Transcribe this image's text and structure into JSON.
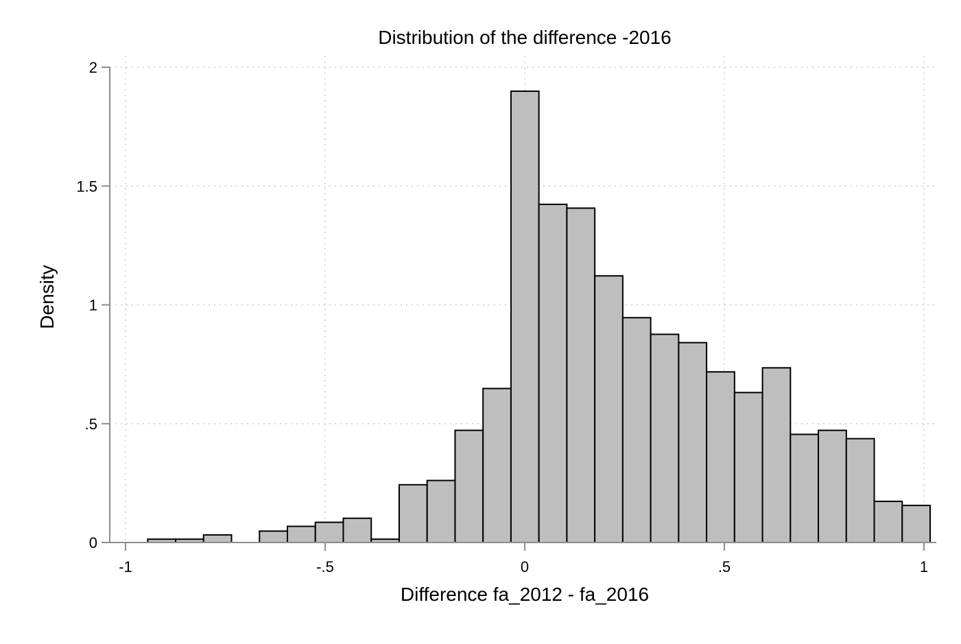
{
  "chart_data": {
    "type": "bar",
    "title": "Distribution of the difference -2016",
    "xlabel": "Difference fa_2012 - fa_2016",
    "ylabel": "Density",
    "xlim": [
      -1,
      1
    ],
    "ylim": [
      0,
      2
    ],
    "xticks": [
      {
        "value": -1,
        "label": "-1"
      },
      {
        "value": -0.5,
        "label": "-.5"
      },
      {
        "value": 0,
        "label": "0"
      },
      {
        "value": 0.5,
        "label": ".5"
      },
      {
        "value": 1,
        "label": "1"
      }
    ],
    "yticks": [
      {
        "value": 0,
        "label": "0"
      },
      {
        "value": 0.5,
        "label": ".5"
      },
      {
        "value": 1,
        "label": "1"
      },
      {
        "value": 1.5,
        "label": "1.5"
      },
      {
        "value": 2,
        "label": "2"
      }
    ],
    "grid": true,
    "legend": "none",
    "bar_color": "#bebebe",
    "bar_edge_color": "#000000",
    "bins": [
      {
        "start": -0.9445,
        "end": -0.8745,
        "density": 0.014
      },
      {
        "start": -0.8745,
        "end": -0.8045,
        "density": 0.014
      },
      {
        "start": -0.8045,
        "end": -0.7345,
        "density": 0.032
      },
      {
        "start": -0.6645,
        "end": -0.5945,
        "density": 0.048
      },
      {
        "start": -0.5945,
        "end": -0.5245,
        "density": 0.068
      },
      {
        "start": -0.5245,
        "end": -0.4545,
        "density": 0.085
      },
      {
        "start": -0.4545,
        "end": -0.3845,
        "density": 0.102
      },
      {
        "start": -0.3845,
        "end": -0.3145,
        "density": 0.014
      },
      {
        "start": -0.3145,
        "end": -0.2445,
        "density": 0.243
      },
      {
        "start": -0.2445,
        "end": -0.1745,
        "density": 0.261
      },
      {
        "start": -0.1745,
        "end": -0.1045,
        "density": 0.472
      },
      {
        "start": -0.1045,
        "end": -0.0345,
        "density": 0.648
      },
      {
        "start": -0.0345,
        "end": 0.0355,
        "density": 1.899
      },
      {
        "start": 0.0355,
        "end": 0.1055,
        "density": 1.423
      },
      {
        "start": 0.1055,
        "end": 0.1755,
        "density": 1.407
      },
      {
        "start": 0.1755,
        "end": 0.2455,
        "density": 1.122
      },
      {
        "start": 0.2455,
        "end": 0.3155,
        "density": 0.946
      },
      {
        "start": 0.3155,
        "end": 0.3855,
        "density": 0.876
      },
      {
        "start": 0.3855,
        "end": 0.4555,
        "density": 0.841
      },
      {
        "start": 0.4555,
        "end": 0.5255,
        "density": 0.718
      },
      {
        "start": 0.5255,
        "end": 0.5955,
        "density": 0.631
      },
      {
        "start": 0.5955,
        "end": 0.6655,
        "density": 0.735
      },
      {
        "start": 0.6655,
        "end": 0.7355,
        "density": 0.455
      },
      {
        "start": 0.7355,
        "end": 0.8055,
        "density": 0.472
      },
      {
        "start": 0.8055,
        "end": 0.8755,
        "density": 0.437
      },
      {
        "start": 0.8755,
        "end": 0.9455,
        "density": 0.173
      },
      {
        "start": 0.9455,
        "end": 1.0155,
        "density": 0.156
      }
    ]
  }
}
